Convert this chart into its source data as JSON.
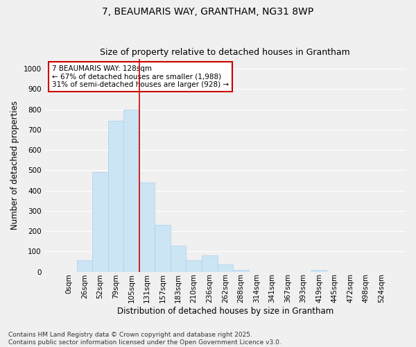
{
  "title": "7, BEAUMARIS WAY, GRANTHAM, NG31 8WP",
  "subtitle": "Size of property relative to detached houses in Grantham",
  "xlabel": "Distribution of detached houses by size in Grantham",
  "ylabel": "Number of detached properties",
  "bins": [
    "0sqm",
    "26sqm",
    "52sqm",
    "79sqm",
    "105sqm",
    "131sqm",
    "157sqm",
    "183sqm",
    "210sqm",
    "236sqm",
    "262sqm",
    "288sqm",
    "314sqm",
    "341sqm",
    "367sqm",
    "393sqm",
    "419sqm",
    "445sqm",
    "472sqm",
    "498sqm",
    "524sqm"
  ],
  "bar_heights": [
    0,
    55,
    490,
    745,
    800,
    440,
    230,
    130,
    55,
    80,
    35,
    10,
    0,
    0,
    0,
    0,
    10,
    0,
    0,
    0,
    0
  ],
  "bar_color": "#cce5f5",
  "bar_edgecolor": "#a8d0ea",
  "vline_color": "#cc0000",
  "vline_x_index": 4,
  "annotation_text": "7 BEAUMARIS WAY: 128sqm\n← 67% of detached houses are smaller (1,988)\n31% of semi-detached houses are larger (928) →",
  "annotation_box_facecolor": "#ffffff",
  "annotation_box_edgecolor": "#cc0000",
  "ylim": [
    0,
    1050
  ],
  "yticks": [
    0,
    100,
    200,
    300,
    400,
    500,
    600,
    700,
    800,
    900,
    1000
  ],
  "footnote": "Contains HM Land Registry data © Crown copyright and database right 2025.\nContains public sector information licensed under the Open Government Licence v3.0.",
  "bg_color": "#f0f0f0",
  "plot_bg_color": "#f0f0f0",
  "grid_color": "#ffffff",
  "title_fontsize": 10,
  "subtitle_fontsize": 9,
  "label_fontsize": 8.5,
  "tick_fontsize": 7.5,
  "annotation_fontsize": 7.5,
  "footnote_fontsize": 6.5
}
